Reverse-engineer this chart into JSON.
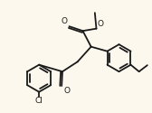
{
  "bg_color": "#fcf8ee",
  "line_color": "#1a1a1a",
  "lw": 1.3,
  "font_size": 6.0,
  "fig_w": 1.68,
  "fig_h": 1.25,
  "dpi": 100,
  "xlim": [
    0,
    10
  ],
  "ylim": [
    0,
    7.5
  ]
}
